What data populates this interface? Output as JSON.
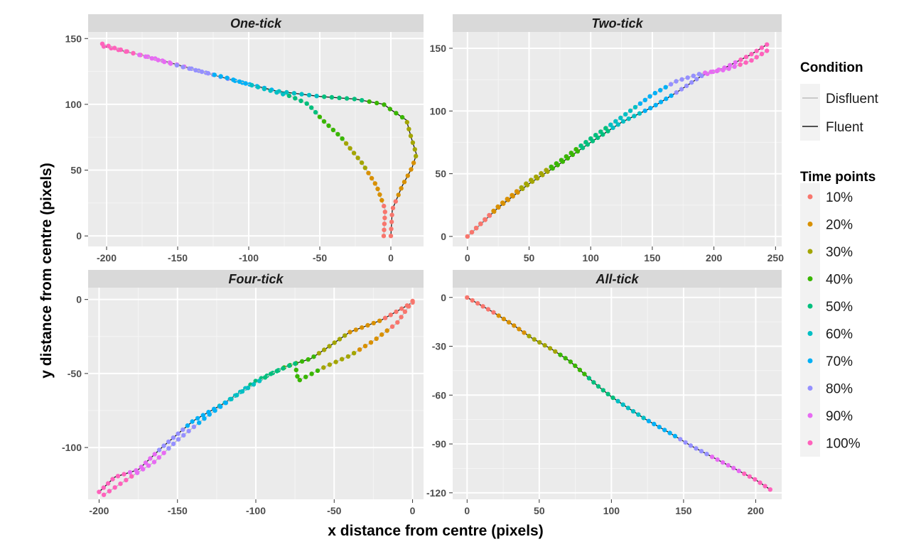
{
  "chart_data": {
    "type": "scatter",
    "xlabel": "x distance from centre (pixels)",
    "ylabel": "y distance from centre (pixels)",
    "legend": {
      "placement": "right",
      "condition": {
        "title": "Condition",
        "entries": [
          {
            "label": "Disfluent",
            "color": "#bdbdbd"
          },
          {
            "label": "Fluent",
            "color": "#1a1a1a"
          }
        ]
      },
      "time_points": {
        "title": "Time points",
        "entries": [
          {
            "label": "10%",
            "color": "#F8766D"
          },
          {
            "label": "20%",
            "color": "#D89000"
          },
          {
            "label": "30%",
            "color": "#A3A500"
          },
          {
            "label": "40%",
            "color": "#39B600"
          },
          {
            "label": "50%",
            "color": "#00BF7D"
          },
          {
            "label": "60%",
            "color": "#00BFC4"
          },
          {
            "label": "70%",
            "color": "#00B0F6"
          },
          {
            "label": "80%",
            "color": "#9590FF"
          },
          {
            "label": "90%",
            "color": "#E76BF3"
          },
          {
            "label": "100%",
            "color": "#FF62BC"
          }
        ]
      }
    },
    "panels": [
      {
        "title": "One-tick",
        "xlim": [
          -213,
          23
        ],
        "ylim": [
          -8,
          155
        ],
        "xticks": [
          -200,
          -150,
          -100,
          -50,
          0
        ],
        "yticks": [
          0,
          50,
          100,
          150
        ],
        "xtick_labels": [
          "-200",
          "-150",
          "-100",
          "-50",
          "0"
        ],
        "ytick_labels": [
          "0",
          "50",
          "100",
          "150"
        ],
        "series": [
          {
            "condition": "Fluent",
            "path": [
              [
                0,
                0
              ],
              [
                1,
                20
              ],
              [
                8,
                38
              ],
              [
                15,
                52
              ],
              [
                18,
                62
              ],
              [
                14,
                76
              ],
              [
                11,
                88
              ],
              [
                0,
                96
              ],
              [
                -5,
                100
              ],
              [
                -25,
                104
              ],
              [
                -50,
                106
              ],
              [
                -80,
                110
              ],
              [
                -110,
                118
              ],
              [
                -140,
                127
              ],
              [
                -170,
                136
              ],
              [
                -190,
                141
              ],
              [
                -202,
                144
              ]
            ]
          },
          {
            "condition": "Disfluent",
            "path": [
              [
                -5,
                0
              ],
              [
                -4,
                20
              ],
              [
                -10,
                38
              ],
              [
                -20,
                55
              ],
              [
                -35,
                75
              ],
              [
                -48,
                88
              ],
              [
                -58,
                100
              ],
              [
                -70,
                106
              ],
              [
                -90,
                112
              ],
              [
                -115,
                120
              ],
              [
                -145,
                128
              ],
              [
                -175,
                137
              ],
              [
                -195,
                143
              ],
              [
                -203,
                146
              ]
            ]
          }
        ]
      },
      {
        "title": "Two-tick",
        "xlim": [
          -12,
          255
        ],
        "ylim": [
          -8,
          163
        ],
        "xticks": [
          0,
          50,
          100,
          150,
          200,
          250
        ],
        "yticks": [
          0,
          50,
          100,
          150
        ],
        "xtick_labels": [
          "0",
          "50",
          "100",
          "150",
          "200",
          "250"
        ],
        "ytick_labels": [
          "0",
          "50",
          "100",
          "150"
        ],
        "series": [
          {
            "condition": "Fluent",
            "path": [
              [
                0,
                0
              ],
              [
                25,
                23
              ],
              [
                50,
                42
              ],
              [
                75,
                58
              ],
              [
                100,
                75
              ],
              [
                125,
                91
              ],
              [
                150,
                103
              ],
              [
                170,
                115
              ],
              [
                190,
                128
              ],
              [
                210,
                135
              ],
              [
                230,
                145
              ],
              [
                243,
                153
              ]
            ]
          },
          {
            "condition": "Disfluent",
            "path": [
              [
                0,
                0
              ],
              [
                25,
                24
              ],
              [
                50,
                44
              ],
              [
                75,
                60
              ],
              [
                100,
                78
              ],
              [
                125,
                95
              ],
              [
                150,
                113
              ],
              [
                170,
                124
              ],
              [
                190,
                130
              ],
              [
                210,
                133
              ],
              [
                230,
                140
              ],
              [
                243,
                148
              ]
            ]
          }
        ]
      },
      {
        "title": "Four-tick",
        "xlim": [
          -207,
          7
        ],
        "ylim": [
          -135,
          8
        ],
        "xticks": [
          -200,
          -150,
          -100,
          -50,
          0
        ],
        "yticks": [
          -100,
          -50,
          0
        ],
        "xtick_labels": [
          "-200",
          "-150",
          "-100",
          "-50",
          "0"
        ],
        "ytick_labels": [
          "-100",
          "-50",
          "0"
        ],
        "series": [
          {
            "condition": "Fluent",
            "path": [
              [
                0,
                -2
              ],
              [
                -10,
                -8
              ],
              [
                -20,
                -14
              ],
              [
                -30,
                -18
              ],
              [
                -40,
                -22
              ],
              [
                -55,
                -33
              ],
              [
                -65,
                -40
              ],
              [
                -80,
                -45
              ],
              [
                -100,
                -55
              ],
              [
                -120,
                -70
              ],
              [
                -140,
                -82
              ],
              [
                -160,
                -100
              ],
              [
                -175,
                -115
              ],
              [
                -190,
                -120
              ],
              [
                -200,
                -130
              ]
            ]
          },
          {
            "condition": "Disfluent",
            "path": [
              [
                0,
                -1
              ],
              [
                -10,
                -16
              ],
              [
                -25,
                -28
              ],
              [
                -40,
                -38
              ],
              [
                -55,
                -45
              ],
              [
                -73,
                -55
              ],
              [
                -75,
                -43
              ],
              [
                -90,
                -50
              ],
              [
                -110,
                -63
              ],
              [
                -130,
                -78
              ],
              [
                -150,
                -95
              ],
              [
                -165,
                -110
              ],
              [
                -180,
                -120
              ],
              [
                -197,
                -132
              ]
            ]
          }
        ]
      },
      {
        "title": "All-tick",
        "xlim": [
          -10,
          218
        ],
        "ylim": [
          -124,
          6
        ],
        "xticks": [
          0,
          50,
          100,
          150,
          200
        ],
        "yticks": [
          -120,
          -90,
          -60,
          -30,
          0
        ],
        "xtick_labels": [
          "0",
          "50",
          "100",
          "150",
          "200"
        ],
        "ytick_labels": [
          "-120",
          "-90",
          "-60",
          "-30",
          "0"
        ],
        "series": [
          {
            "condition": "Fluent",
            "path": [
              [
                0,
                0
              ],
              [
                18,
                -9
              ],
              [
                32,
                -17
              ],
              [
                45,
                -25
              ],
              [
                59,
                -32
              ],
              [
                71,
                -39
              ],
              [
                80,
                -46
              ],
              [
                90,
                -54
              ],
              [
                100,
                -61
              ],
              [
                110,
                -67
              ],
              [
                124,
                -75
              ],
              [
                140,
                -83
              ],
              [
                155,
                -91
              ],
              [
                170,
                -98
              ],
              [
                185,
                -105
              ],
              [
                200,
                -112
              ],
              [
                210,
                -118
              ]
            ]
          }
        ]
      }
    ]
  }
}
